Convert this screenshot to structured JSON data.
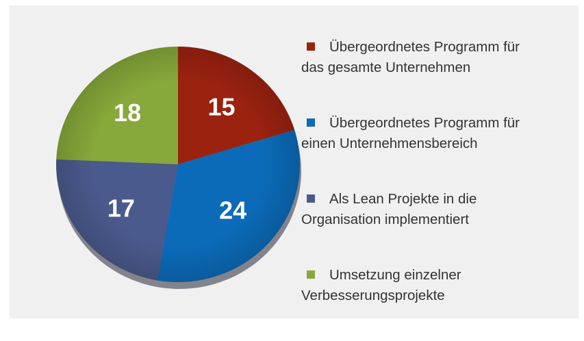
{
  "chart_data": {
    "type": "pie",
    "categories": [
      "Übergeordnetes Programm für\ndas  gesamte Unternehmen",
      "Übergeordnetes Programm für\neinen  Unternehmensbereich",
      "Als Lean Projekte in die\nOrganisation implementiert",
      "Umsetzung einzelner\nVerbesserungsprojekte"
    ],
    "values": [
      15,
      24,
      17,
      18
    ],
    "colors": [
      "#9c2210",
      "#0b6bb8",
      "#4a5a8c",
      "#87a83a"
    ],
    "legend": "right"
  }
}
